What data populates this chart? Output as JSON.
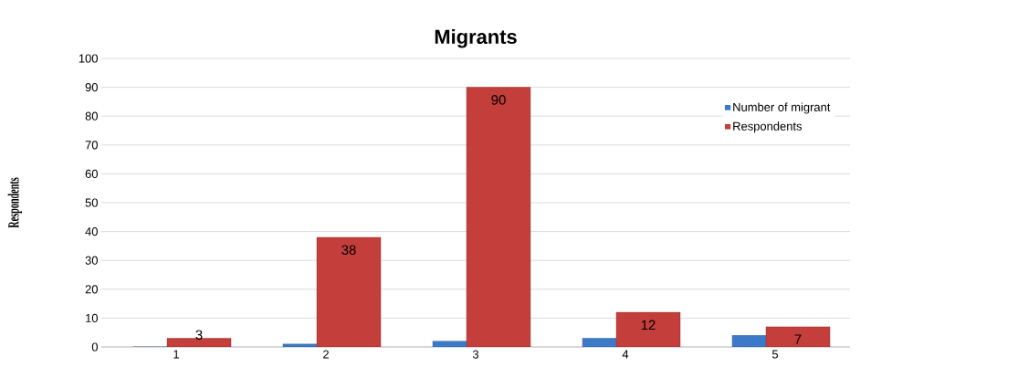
{
  "chart_data": {
    "type": "bar",
    "title": "Migrants",
    "ylabel": "Respondents",
    "categories": [
      "1",
      "2",
      "3",
      "4",
      "5"
    ],
    "series": [
      {
        "name": "Number of migrant",
        "color": "#3c7ac9",
        "values": [
          0,
          1,
          2,
          3,
          4
        ]
      },
      {
        "name": "Respondents",
        "color": "#c43e3b",
        "values": [
          3,
          38,
          90,
          12,
          7
        ],
        "value_labels": [
          "3",
          "38",
          "90",
          "12",
          "7"
        ]
      }
    ],
    "ylim": [
      0,
      100
    ],
    "yticks": [
      0,
      10,
      20,
      30,
      40,
      50,
      60,
      70,
      80,
      90,
      100
    ],
    "grid": "y",
    "legend": "top right"
  }
}
